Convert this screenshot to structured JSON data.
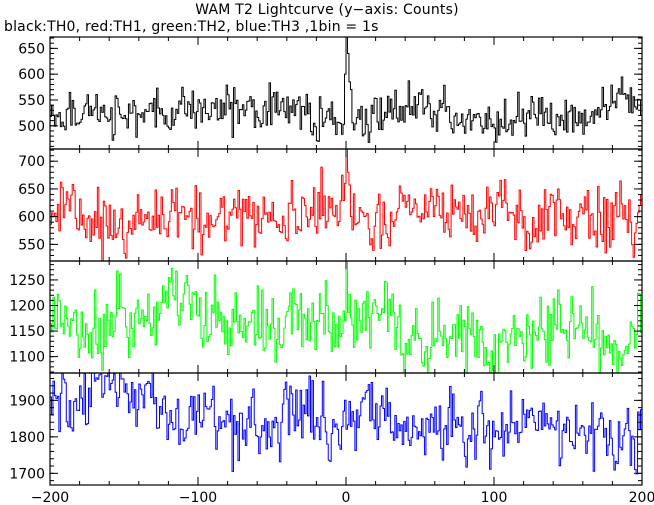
{
  "title": "WAM T2 Lightcurve (y−axis: Counts)",
  "subtitle": "black:TH0, red:TH1, green:TH2, blue:TH3 ,1bin = 1s",
  "chart_data": {
    "type": "line",
    "x_ticks": [
      -200,
      -100,
      0,
      100,
      200
    ],
    "xlim": [
      -200,
      200
    ],
    "bin_seconds": 1,
    "panels": [
      {
        "name": "TH0",
        "color": "#000000",
        "ylim": [
          455,
          672
        ],
        "y_ticks": [
          500,
          550,
          600,
          650
        ],
        "mean": 525,
        "noise": 22,
        "spikes": [
          {
            "x": 0,
            "y": 672
          },
          {
            "x": 1,
            "y": 640
          },
          {
            "x": -1,
            "y": 600
          },
          {
            "x": 2,
            "y": 585
          },
          {
            "x": 3,
            "y": 570
          }
        ]
      },
      {
        "name": "TH1",
        "color": "#ff0000",
        "ylim": [
          520,
          722
        ],
        "y_ticks": [
          550,
          600,
          650,
          700
        ],
        "mean": 600,
        "noise": 30,
        "spikes": [
          {
            "x": 0,
            "y": 722
          },
          {
            "x": 1,
            "y": 680
          },
          {
            "x": -1,
            "y": 660
          }
        ]
      },
      {
        "name": "TH2",
        "color": "#00ff00",
        "ylim": [
          1068,
          1287
        ],
        "y_ticks": [
          1100,
          1150,
          1200,
          1250
        ],
        "mean_start": 1190,
        "mean_end": 1130,
        "noise": 40,
        "spikes": [
          {
            "x": 0,
            "y": 1287
          }
        ]
      },
      {
        "name": "TH3",
        "color": "#0000ff",
        "ylim": [
          1668,
          1975
        ],
        "y_ticks": [
          1700,
          1800,
          1900
        ],
        "mean_start": 1880,
        "mean_end": 1810,
        "noise": 50,
        "spikes": []
      }
    ]
  }
}
